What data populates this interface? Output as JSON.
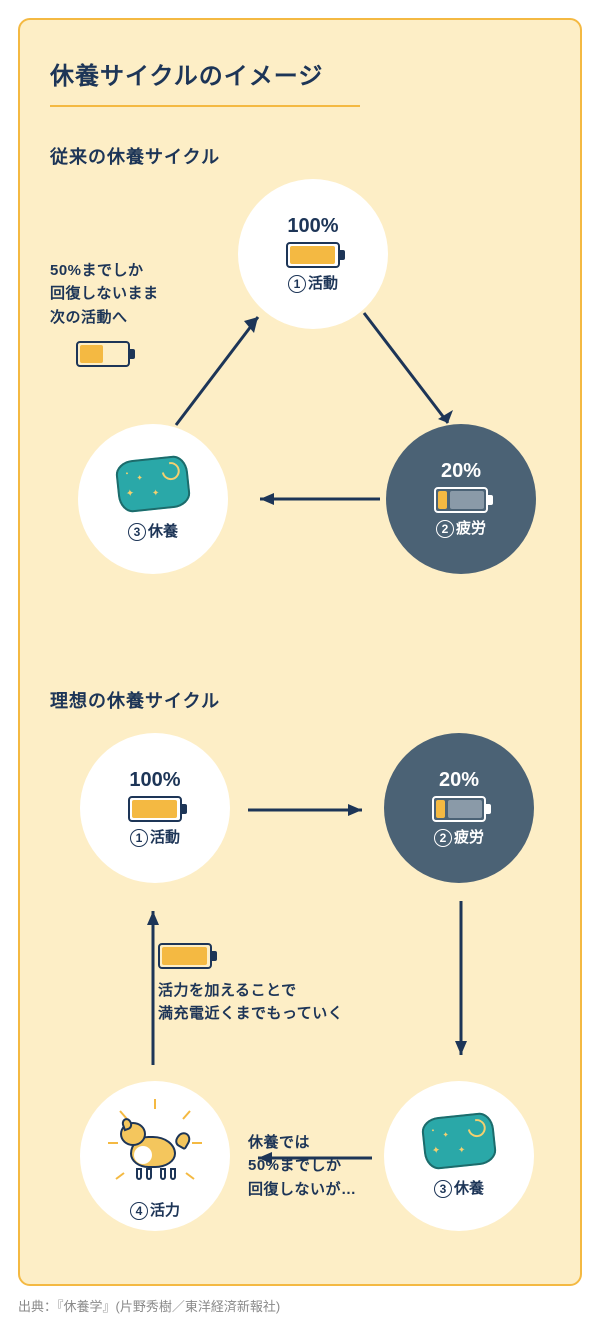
{
  "colors": {
    "panel_bg": "#fdeec6",
    "panel_border": "#f4b942",
    "text_navy": "#1d3557",
    "node_dark_bg": "#4b6275",
    "node_white_bg": "#ffffff",
    "battery_fill": "#f4b942",
    "battery_empty_dark": "#8a9aa8",
    "pillow_bg": "#2aa8a8",
    "dog_body": "#f4c65d",
    "source_text": "#8a8a8a"
  },
  "title": "休養サイクルのイメージ",
  "cycle1": {
    "subtitle": "従来の休養サイクル",
    "annot": "50%までしか\n回復しないまま\n次の活動へ",
    "annot_battery_fill_pct": 45,
    "node_activity": {
      "num": "1",
      "pct": "100%",
      "label": "活動",
      "battery_fill_pct": 90
    },
    "node_fatigue": {
      "num": "2",
      "pct": "20%",
      "label": "疲労",
      "battery_fill_pct": 18
    },
    "node_rest": {
      "num": "3",
      "label": "休養"
    }
  },
  "cycle2": {
    "subtitle": "理想の休養サイクル",
    "node_activity": {
      "num": "1",
      "pct": "100%",
      "label": "活動",
      "battery_fill_pct": 90
    },
    "node_fatigue": {
      "num": "2",
      "pct": "20%",
      "label": "疲労",
      "battery_fill_pct": 18
    },
    "node_rest": {
      "num": "3",
      "label": "休養"
    },
    "node_vitality": {
      "num": "4",
      "label": "活力"
    },
    "annot_top": "活力を加えることで\n満充電近くまでもっていく",
    "annot_top_battery_fill_pct": 90,
    "annot_bottom": "休養では\n50%までしか\n回復しないが…"
  },
  "source": "出典：『休養学』(片野秀樹／東洋経済新報社)"
}
